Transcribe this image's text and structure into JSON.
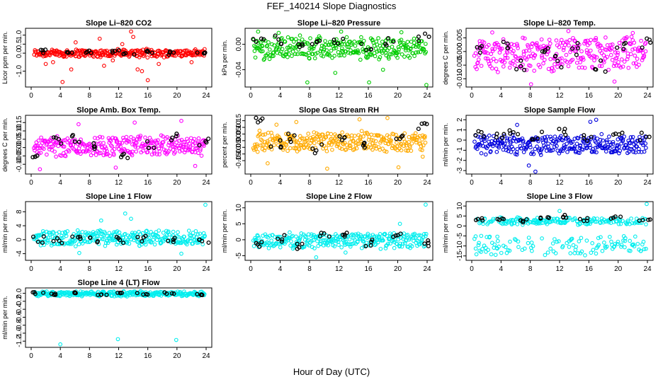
{
  "figure": {
    "title": "FEF_140214  Slope Diagnostics",
    "xlabel": "Hour of Day (UTC)"
  },
  "chart_data": [
    {
      "type": "scatter",
      "title": "Slope Li–820 CO2",
      "ylabel": "Licor ppm per min.",
      "xlim": [
        0,
        24
      ],
      "xticks": [
        0,
        4,
        8,
        12,
        16,
        20,
        24
      ],
      "ylim": [
        -1.8,
        1.3
      ],
      "yticks": [
        -1.0,
        0.0,
        0.5,
        1.0
      ],
      "ytick_labels": [
        "-1.0",
        "0.0",
        "0.5",
        "1.0"
      ],
      "series_color": "#ff0000",
      "band": [
        -0.25,
        0.25
      ],
      "outliers": [
        [
          2.0,
          -0.6
        ],
        [
          3.0,
          -0.5
        ],
        [
          5.5,
          -0.9
        ],
        [
          6.1,
          0.6
        ],
        [
          9.4,
          0.8
        ],
        [
          10.0,
          -0.7
        ],
        [
          12.5,
          0.5
        ],
        [
          13.7,
          1.2
        ],
        [
          14.0,
          0.9
        ],
        [
          14.6,
          -0.9
        ],
        [
          15.2,
          -1.0
        ],
        [
          16.0,
          -1.5
        ],
        [
          17.5,
          -0.6
        ],
        [
          22.0,
          -0.5
        ],
        [
          4.3,
          -1.6
        ],
        [
          11.2,
          -0.4
        ]
      ],
      "fixed_points": [
        [
          1.2,
          0.1
        ],
        [
          4.9,
          0.1
        ],
        [
          7.6,
          0.05
        ],
        [
          11.3,
          0.1
        ],
        [
          13.4,
          -0.1
        ],
        [
          15.9,
          0.1
        ],
        [
          19.5,
          0.0
        ],
        [
          23.5,
          0.0
        ]
      ]
    },
    {
      "type": "scatter",
      "title": "Slope Li–820 Pressure",
      "ylabel": "kPa per min.",
      "xlim": [
        0,
        24
      ],
      "xticks": [
        0,
        4,
        8,
        12,
        16,
        20,
        24
      ],
      "ylim": [
        -0.065,
        0.023
      ],
      "yticks": [
        -0.04,
        0.0
      ],
      "ytick_labels": [
        "-0.04",
        "0.00"
      ],
      "series_color": "#00cc00",
      "band": [
        -0.025,
        0.013
      ],
      "outliers": [
        [
          1.0,
          0.02
        ],
        [
          3.8,
          0.018
        ],
        [
          7.7,
          -0.06
        ],
        [
          11.5,
          -0.045
        ],
        [
          12.3,
          0.02
        ],
        [
          16.1,
          -0.06
        ],
        [
          20.5,
          0.019
        ],
        [
          23.9,
          -0.064
        ],
        [
          6.7,
          0.014
        ],
        [
          18.0,
          -0.04
        ]
      ],
      "fixed_points": [
        [
          1.0,
          0.004
        ],
        [
          4.1,
          0.008
        ],
        [
          6.7,
          0.0
        ],
        [
          9.0,
          0.006
        ],
        [
          12.0,
          0.005
        ],
        [
          15.6,
          -0.004
        ],
        [
          18.8,
          0.002
        ],
        [
          23.6,
          0.01
        ]
      ]
    },
    {
      "type": "scatter",
      "title": "Slope Li–820 Temp.",
      "ylabel": "degrees C per min.",
      "xlim": [
        0,
        24
      ],
      "xticks": [
        0,
        4,
        8,
        12,
        16,
        20,
        24
      ],
      "ylim": [
        -0.0125,
        0.008
      ],
      "yticks": [
        -0.01,
        -0.005,
        0.0,
        0.005
      ],
      "ytick_labels": [
        "-0.010",
        "-0.005",
        "0.000",
        "0.005"
      ],
      "series_color": "#ff00ff",
      "band": [
        -0.008,
        0.006
      ],
      "outliers": [
        [
          2.8,
          0.007
        ],
        [
          8.1,
          -0.012
        ],
        [
          13.2,
          0.0075
        ],
        [
          19.5,
          -0.011
        ],
        [
          22.0,
          0.0068
        ]
      ],
      "fixed_points": [
        [
          1.5,
          0.002
        ],
        [
          4.2,
          0.004
        ],
        [
          6.8,
          -0.004
        ],
        [
          10.2,
          0.0
        ],
        [
          12.1,
          -0.003
        ],
        [
          14.5,
          0.001
        ],
        [
          17.5,
          -0.006
        ],
        [
          20.5,
          0.001
        ],
        [
          23.7,
          0.002
        ]
      ]
    },
    {
      "type": "scatter",
      "title": "Slope Amb. Box Temp.",
      "ylabel": "degrees C per min.",
      "xlim": [
        0,
        24
      ],
      "xticks": [
        0,
        4,
        8,
        12,
        16,
        20,
        24
      ],
      "ylim": [
        -0.15,
        0.185
      ],
      "yticks": [
        -0.1,
        -0.05,
        0.0,
        0.05,
        0.1,
        0.15
      ],
      "ytick_labels": [
        "-0.10",
        "-0.05",
        "0.00",
        "0.05",
        "0.10",
        "0.15"
      ],
      "series_color": "#ff00ff",
      "band": [
        -0.06,
        0.08
      ],
      "outliers": [
        [
          1.2,
          -0.13
        ],
        [
          6.5,
          0.14
        ],
        [
          11.6,
          -0.12
        ],
        [
          14.2,
          0.15
        ],
        [
          20.6,
          0.16
        ],
        [
          22.5,
          -0.11
        ]
      ],
      "fixed_points": [
        [
          1.0,
          -0.05
        ],
        [
          3.8,
          0.04
        ],
        [
          6.2,
          0.05
        ],
        [
          9.3,
          0.01
        ],
        [
          12.6,
          -0.04
        ],
        [
          16.1,
          0.02
        ],
        [
          19.8,
          0.06
        ],
        [
          23.7,
          0.03
        ]
      ]
    },
    {
      "type": "scatter",
      "title": "Slope Gas Stream RH",
      "ylabel": "percent per min.",
      "xlim": [
        0,
        24
      ],
      "xticks": [
        0,
        4,
        8,
        12,
        16,
        20,
        24
      ],
      "ylim": [
        -0.24,
        0.18
      ],
      "yticks": [
        -0.15,
        -0.1,
        -0.05,
        0.0,
        0.05,
        0.1,
        0.15
      ],
      "ytick_labels": [
        "-0.15",
        "-0.10",
        "-0.05",
        "0.00",
        "0.05",
        "0.10",
        "0.15"
      ],
      "series_color": "#ffaa00",
      "band": [
        -0.09,
        0.08
      ],
      "outliers": [
        [
          2.3,
          -0.17
        ],
        [
          6.2,
          0.14
        ],
        [
          10.4,
          -0.21
        ],
        [
          14.8,
          0.16
        ],
        [
          18.6,
          0.17
        ],
        [
          23.4,
          -0.12
        ],
        [
          3.5,
          0.12
        ],
        [
          20.1,
          -0.2
        ]
      ],
      "fixed_points": [
        [
          0.8,
          0.14
        ],
        [
          3.5,
          -0.03
        ],
        [
          5.8,
          0.02
        ],
        [
          8.9,
          -0.06
        ],
        [
          12.4,
          0.03
        ],
        [
          15.8,
          -0.02
        ],
        [
          19.9,
          0.04
        ],
        [
          23.6,
          0.12
        ]
      ]
    },
    {
      "type": "scatter",
      "title": "Slope Sample Flow",
      "ylabel": "ml/min per min.",
      "xlim": [
        0,
        24
      ],
      "xticks": [
        0,
        4,
        8,
        12,
        16,
        20,
        24
      ],
      "ylim": [
        -3.2,
        2.3
      ],
      "yticks": [
        -3,
        -2,
        -1,
        0,
        1,
        2
      ],
      "ytick_labels": [
        "-3",
        "-2",
        "-1",
        "0",
        "1",
        "2"
      ],
      "series_color": "#0000dd",
      "band": [
        -1.5,
        0.6
      ],
      "outliers": [
        [
          6.2,
          1.5
        ],
        [
          7.8,
          -2.5
        ],
        [
          8.7,
          -3.1
        ],
        [
          16.2,
          1.8
        ],
        [
          17.0,
          2.0
        ]
      ],
      "fixed_points": [
        [
          1.0,
          0.5
        ],
        [
          3.7,
          0.3
        ],
        [
          5.8,
          0.6
        ],
        [
          8.9,
          0.4
        ],
        [
          12.3,
          0.7
        ],
        [
          15.7,
          0.3
        ],
        [
          19.8,
          0.5
        ],
        [
          23.6,
          0.4
        ]
      ]
    },
    {
      "type": "scatter",
      "title": "Slope Line 1 Flow",
      "ylabel": "ml/min per min.",
      "xlim": [
        0,
        24
      ],
      "xticks": [
        0,
        4,
        8,
        12,
        16,
        20,
        24
      ],
      "ylim": [
        -5.5,
        10.5
      ],
      "yticks": [
        -4,
        0,
        4,
        8
      ],
      "ytick_labels": [
        "-4",
        "0",
        "4",
        "8"
      ],
      "series_color": "#00eeee",
      "band": [
        -2.0,
        3.0
      ],
      "outliers": [
        [
          12.9,
          7.5
        ],
        [
          13.7,
          6.0
        ],
        [
          23.9,
          10.0
        ],
        [
          20.6,
          -4.0
        ],
        [
          6.6,
          -3.8
        ],
        [
          9.6,
          5.5
        ]
      ],
      "fixed_points": [
        [
          1.0,
          0.0
        ],
        [
          3.7,
          0.0
        ],
        [
          6.2,
          0.0
        ],
        [
          8.8,
          0.2
        ],
        [
          12.0,
          -0.1
        ],
        [
          15.4,
          0.1
        ],
        [
          19.2,
          0.0
        ],
        [
          23.8,
          0.0
        ]
      ]
    },
    {
      "type": "scatter",
      "title": "Slope Line 2 Flow",
      "ylabel": "ml/min per min.",
      "xlim": [
        0,
        24
      ],
      "xticks": [
        0,
        4,
        8,
        12,
        16,
        20,
        24
      ],
      "ylim": [
        -6,
        11.5
      ],
      "yticks": [
        -5,
        0,
        5,
        10
      ],
      "ytick_labels": [
        "-5",
        "0",
        "5",
        "10"
      ],
      "series_color": "#00eeee",
      "band": [
        -3.0,
        2.5
      ],
      "outliers": [
        [
          23.8,
          11.0
        ],
        [
          8.9,
          -5.5
        ],
        [
          12.9,
          -4.0
        ],
        [
          20.3,
          5.0
        ]
      ],
      "fixed_points": [
        [
          1.2,
          -1.5
        ],
        [
          4.0,
          0.5
        ],
        [
          6.8,
          -2.0
        ],
        [
          9.9,
          1.5
        ],
        [
          12.6,
          2.0
        ],
        [
          16.0,
          -1.0
        ],
        [
          19.8,
          0.8
        ],
        [
          23.5,
          -1.0
        ]
      ]
    },
    {
      "type": "scatter",
      "title": "Slope Line 3 Flow",
      "ylabel": "ml/min per min.",
      "xlim": [
        0,
        24
      ],
      "xticks": [
        0,
        4,
        8,
        12,
        16,
        20,
        24
      ],
      "ylim": [
        -16.5,
        11.5
      ],
      "yticks": [
        -15,
        -10,
        -5,
        0,
        5,
        10
      ],
      "ytick_labels": [
        "-15",
        "-10",
        "-5",
        "0",
        "5",
        "10"
      ],
      "series_color": "#00eeee",
      "band": [
        0.5,
        4.5
      ],
      "lower_band": [
        -15.5,
        -4.5
      ],
      "outliers": [
        [
          23.9,
          11.0
        ],
        [
          12.0,
          7.5
        ]
      ],
      "fixed_points": [
        [
          0.8,
          3.5
        ],
        [
          4.0,
          3.0
        ],
        [
          7.0,
          2.5
        ],
        [
          10.1,
          3.8
        ],
        [
          12.4,
          5.0
        ],
        [
          15.5,
          3.2
        ],
        [
          19.8,
          4.0
        ],
        [
          23.6,
          3.0
        ]
      ]
    },
    {
      "type": "scatter",
      "title": "Slope Line 4 (LT) Flow",
      "ylabel": "ml/min per min.",
      "xlim": [
        0,
        24
      ],
      "xticks": [
        0,
        4,
        8,
        12,
        16,
        20,
        24
      ],
      "ylim": [
        -1.32,
        0.1
      ],
      "yticks": [
        -1.2,
        -1.0,
        -0.8,
        -0.6,
        -0.4,
        -0.2,
        0.0
      ],
      "ytick_labels": [
        "-1.2",
        "-1.0",
        "-0.8",
        "-0.6",
        "-0.4",
        "-0.2",
        "0.0"
      ],
      "series_color": "#00eeee",
      "band": [
        -0.08,
        0.06
      ],
      "outliers": [
        [
          4.0,
          -1.28
        ],
        [
          11.9,
          -1.15
        ],
        [
          19.9,
          -1.17
        ]
      ],
      "fixed_points": [
        [
          1.0,
          0.0
        ],
        [
          3.5,
          -0.02
        ],
        [
          6.5,
          0.01
        ],
        [
          9.8,
          -0.03
        ],
        [
          12.5,
          0.0
        ],
        [
          15.2,
          -0.02
        ],
        [
          18.9,
          0.01
        ],
        [
          23.5,
          -0.04
        ]
      ]
    }
  ]
}
